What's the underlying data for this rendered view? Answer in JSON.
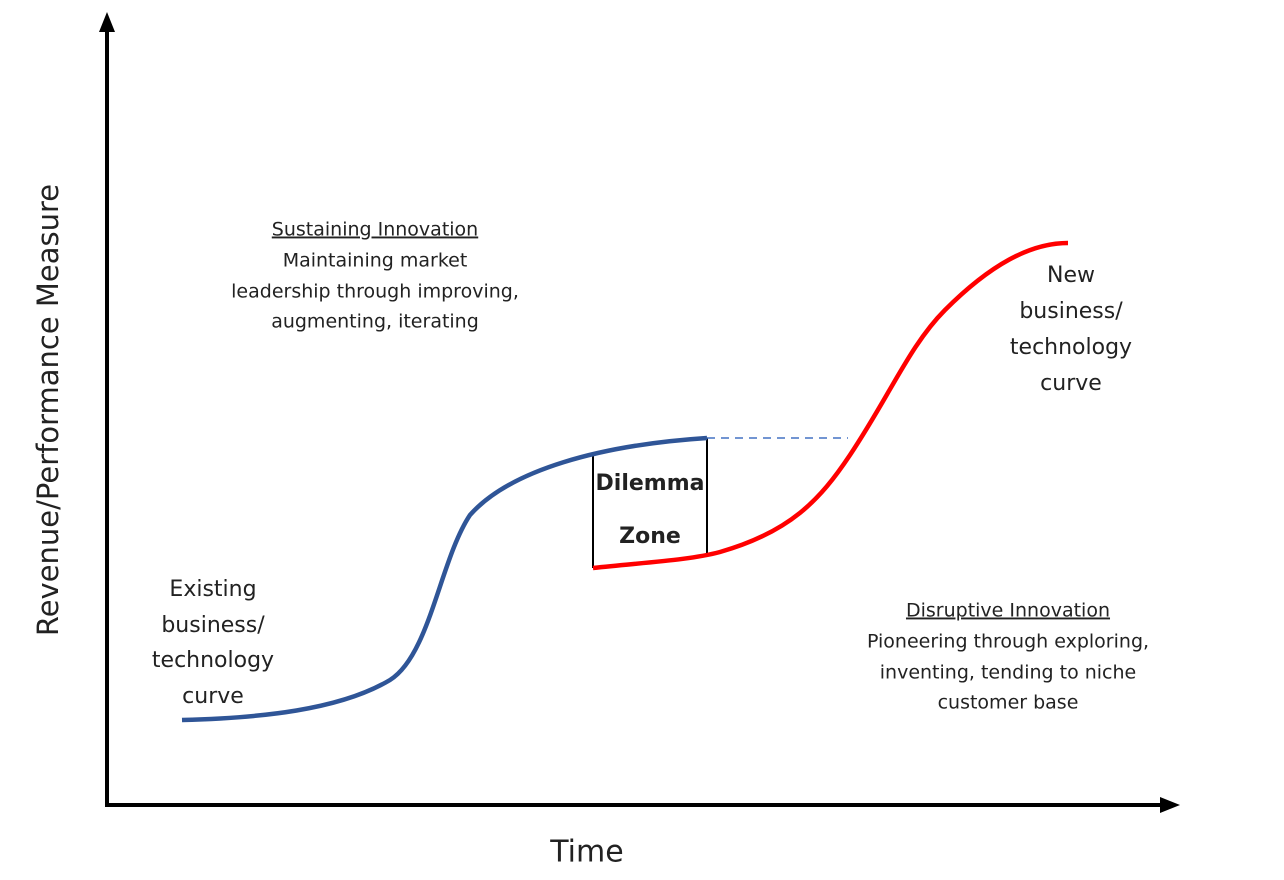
{
  "axes": {
    "y_label": "Revenue/Performance Measure",
    "x_label": "Time"
  },
  "sustaining": {
    "title": "Sustaining Innovation",
    "lines": [
      "Maintaining market",
      "leadership through improving,",
      "augmenting, iterating"
    ]
  },
  "disruptive": {
    "title": "Disruptive Innovation",
    "lines": [
      "Pioneering through exploring,",
      "inventing, tending to niche",
      "customer base"
    ]
  },
  "existing_curve": {
    "lines": [
      "Existing",
      "business/",
      "technology",
      "curve"
    ]
  },
  "new_curve": {
    "lines": [
      "New",
      "business/",
      "technology",
      "curve"
    ]
  },
  "dilemma_zone": {
    "lines": [
      "Dilemma",
      "Zone"
    ]
  }
}
